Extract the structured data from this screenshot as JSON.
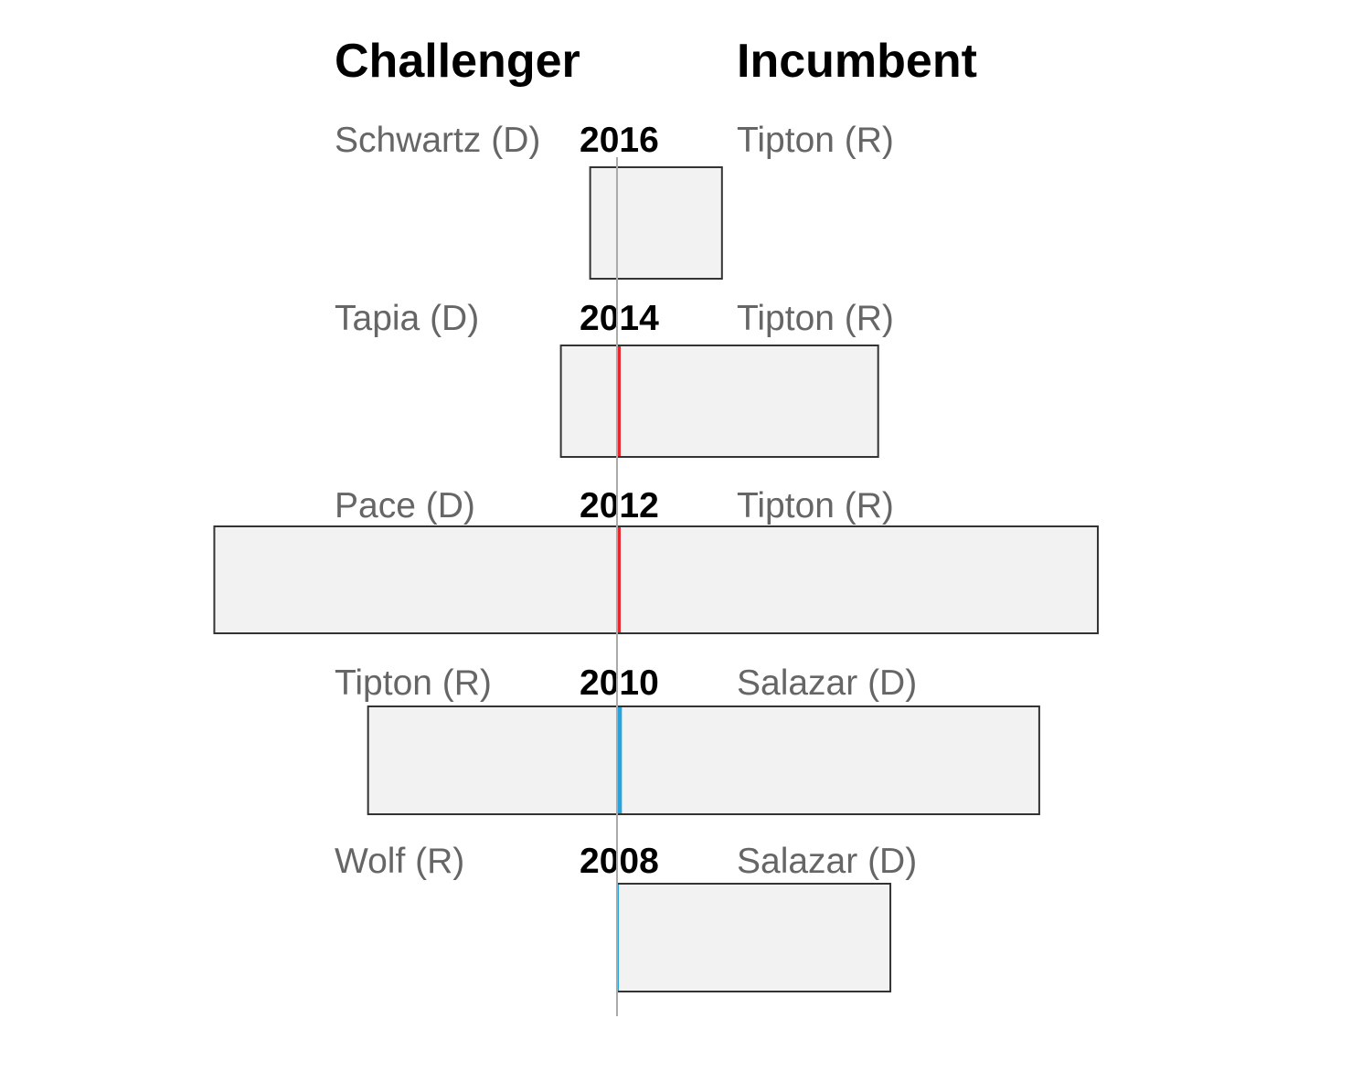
{
  "headers": {
    "challenger": "Challenger",
    "incumbent": "Incumbent"
  },
  "colors": {
    "democrat": "#29a3dd",
    "republican": "#e8262b",
    "box_fill": "#f2f2f2",
    "box_stroke": "#333333",
    "center_line": "#aaaaaa",
    "name_text": "#666666"
  },
  "chart_data": {
    "type": "bar",
    "orientation": "diverging-horizontal",
    "left_label": "Challenger",
    "right_label": "Incumbent",
    "units": "relative (challenger extends left, incumbent extends right of center)",
    "rows": [
      {
        "year": "2016",
        "challenger": "Schwartz (D)",
        "incumbent": "Tipton (R)",
        "challenger_value": 11,
        "incumbent_value": 43,
        "margin_party": null,
        "margin_value": 0
      },
      {
        "year": "2014",
        "challenger": "Tapia (D)",
        "incumbent": "Tipton (R)",
        "challenger_value": 23,
        "incumbent_value": 107,
        "margin_party": "R",
        "margin_value": 1.5
      },
      {
        "year": "2012",
        "challenger": "Pace (D)",
        "incumbent": "Tipton (R)",
        "challenger_value": 165,
        "incumbent_value": 197,
        "margin_party": "R",
        "margin_value": 1.5
      },
      {
        "year": "2010",
        "challenger": "Tipton (R)",
        "incumbent": "Salazar (D)",
        "challenger_value": 102,
        "incumbent_value": 173,
        "margin_party": "D",
        "margin_value": 2
      },
      {
        "year": "2008",
        "challenger": "Wolf (R)",
        "incumbent": "Salazar (D)",
        "challenger_value": 0,
        "incumbent_value": 112,
        "margin_party": "D",
        "margin_value": 0.6
      }
    ]
  }
}
